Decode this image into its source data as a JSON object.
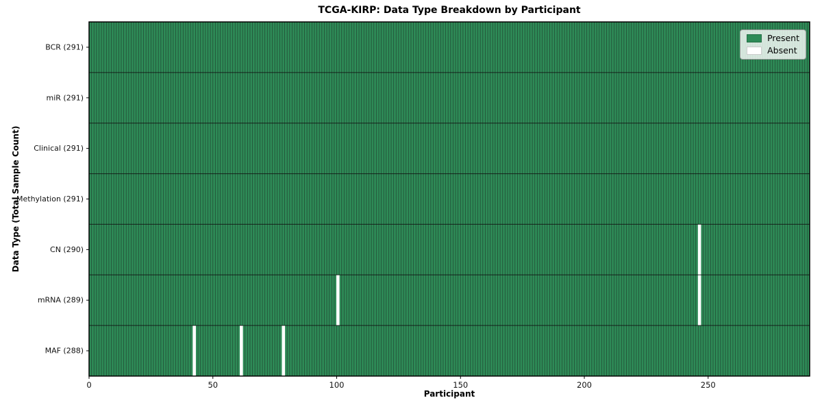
{
  "chart_data": {
    "type": "heatmap",
    "title": "TCGA-KIRP: Data Type Breakdown by Participant",
    "xlabel": "Participant",
    "ylabel": "Data Type (Total Sample Count)",
    "n_participants": 291,
    "x_range": [
      0,
      291
    ],
    "xticks": [
      0,
      50,
      100,
      150,
      200,
      250
    ],
    "rows": [
      {
        "label": "BCR (291)",
        "data_type": "BCR",
        "present_count": 291,
        "absent_participants": []
      },
      {
        "label": "miR (291)",
        "data_type": "miR",
        "present_count": 291,
        "absent_participants": []
      },
      {
        "label": "Clinical (291)",
        "data_type": "Clinical",
        "present_count": 291,
        "absent_participants": []
      },
      {
        "label": "Methylation (291)",
        "data_type": "Methylation",
        "present_count": 291,
        "absent_participants": []
      },
      {
        "label": "CN (290)",
        "data_type": "CN",
        "present_count": 290,
        "absent_participants": [
          246
        ]
      },
      {
        "label": "mRNA (289)",
        "data_type": "mRNA",
        "present_count": 289,
        "absent_participants": [
          100,
          246
        ]
      },
      {
        "label": "MAF (288)",
        "data_type": "MAF",
        "present_count": 288,
        "absent_participants": [
          42,
          61,
          78
        ]
      }
    ],
    "legend": {
      "position": "upper right",
      "items": [
        {
          "label": "Present",
          "color": "#2e8b57"
        },
        {
          "label": "Absent",
          "color": "#ffffff"
        }
      ]
    },
    "colors": {
      "present": "#2e8b57",
      "absent": "#ffffff",
      "cell_edge": "#1a1a1a",
      "row_divider": "#111111",
      "frame": "#000000",
      "tick_text": "#111111"
    }
  }
}
